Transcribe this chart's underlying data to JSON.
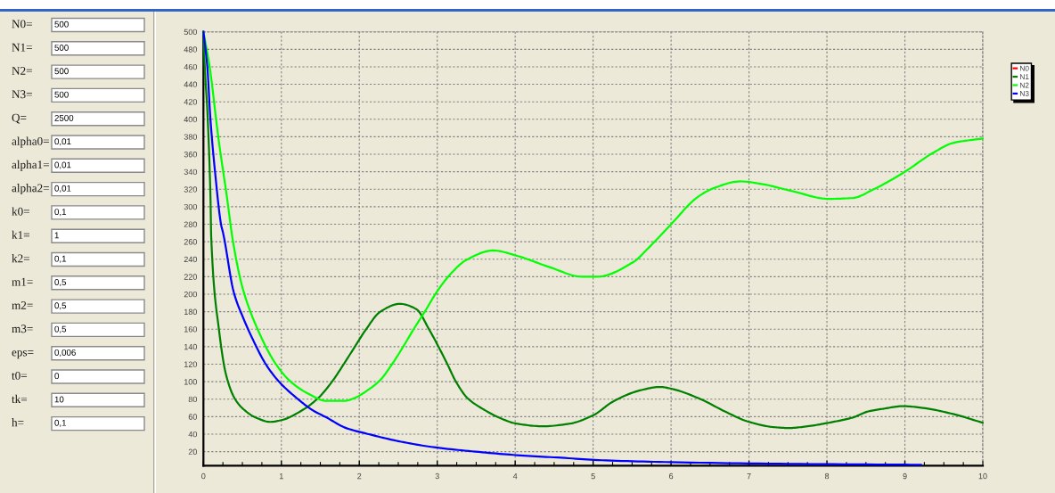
{
  "chart_data": [
    {
      "type": "other",
      "categories": [
        "N0=",
        "N1=",
        "N2=",
        "N3=",
        "Q=",
        "alpha0=",
        "alpha1=",
        "alpha2=",
        "k0=",
        "k1=",
        "k2=",
        "m1=",
        "m2=",
        "m3=",
        "eps=",
        "t0=",
        "tk=",
        "h="
      ],
      "value_labels": [
        "500",
        "500",
        "500",
        "500",
        "2500",
        "0,01",
        "0,01",
        "0,01",
        "0,1",
        "1",
        "0,1",
        "0,5",
        "0,5",
        "0,5",
        "0,006",
        "0",
        "10",
        "0,1"
      ]
    },
    {
      "type": "line",
      "xlim": [
        0,
        10
      ],
      "ylim": [
        4,
        500
      ],
      "xticks": [
        0,
        1,
        2,
        3,
        4,
        5,
        6,
        7,
        8,
        9,
        10
      ],
      "yticks": [
        20,
        40,
        60,
        80,
        100,
        120,
        140,
        160,
        180,
        200,
        220,
        240,
        260,
        280,
        300,
        320,
        340,
        360,
        380,
        400,
        420,
        440,
        460,
        480,
        500
      ],
      "grid": true,
      "legend": "top right",
      "series": [
        {
          "name": "N0",
          "color": "#ff0000",
          "values": [
            null
          ]
        },
        {
          "name": "N1",
          "color": "#008000",
          "x": [
            0,
            0.02,
            0.05,
            0.09,
            0.1,
            0.2,
            0.29,
            0.4,
            0.52,
            0.67,
            0.86,
            1.0,
            1.28,
            1.47,
            1.65,
            1.8,
            1.95,
            2.08,
            2.27,
            2.52,
            2.73,
            2.9,
            3.01,
            3.13,
            3.24,
            3.39,
            3.6,
            3.79,
            4.02,
            4.36,
            4.7,
            5.01,
            5.25,
            5.6,
            5.86,
            6.0,
            6.38,
            6.69,
            7.0,
            7.32,
            7.51,
            7.75,
            8.02,
            8.33,
            8.53,
            8.72,
            8.98,
            9.23,
            9.62,
            10
          ],
          "values": [
            500,
            455,
            410,
            312,
            265,
            159,
            108,
            81,
            68,
            59,
            54,
            56,
            68,
            81,
            100,
            120,
            141,
            159,
            180,
            189,
            183,
            159,
            141,
            120,
            100,
            81,
            68,
            59,
            52,
            49,
            52,
            62,
            77,
            90,
            94,
            92,
            80,
            66,
            54,
            48,
            47,
            49,
            53,
            59,
            66,
            69,
            72,
            70,
            63,
            53
          ]
        },
        {
          "name": "N2",
          "color": "#00ff00",
          "x": [
            0,
            0.08,
            0.19,
            0.3,
            0.38,
            0.5,
            0.7,
            0.93,
            1.12,
            1.35,
            1.58,
            1.81,
            1.93,
            2.12,
            2.27,
            2.42,
            2.57,
            2.69,
            2.84,
            2.99,
            3.16,
            3.37,
            3.72,
            4.02,
            4.44,
            4.86,
            5.05,
            5.52,
            5.7,
            5.99,
            6.34,
            6.54,
            6.89,
            7.16,
            7.55,
            8.02,
            8.33,
            8.6,
            9.0,
            9.35,
            9.62,
            10
          ],
          "values": [
            500,
            460,
            380,
            312,
            260,
            208,
            159,
            120,
            100,
            86,
            78,
            78,
            81,
            91,
            102,
            120,
            141,
            159,
            180,
            202,
            222,
            239,
            250,
            244,
            231,
            220,
            220,
            237,
            252,
            279,
            311,
            321,
            329,
            326,
            318,
            309,
            310,
            320,
            340,
            361,
            373,
            378
          ]
        },
        {
          "name": "N3",
          "color": "#0000ff",
          "x": [
            0,
            0.05,
            0.09,
            0.15,
            0.23,
            0.25,
            0.39,
            0.51,
            0.63,
            0.8,
            0.97,
            1.2,
            1.39,
            1.58,
            1.83,
            2.12,
            2.5,
            2.96,
            3.49,
            4.02,
            4.59,
            5.16,
            5.99,
            7.51,
            9.21
          ],
          "values": [
            500,
            460,
            400,
            339,
            278,
            271,
            202,
            173,
            149,
            120,
            100,
            81,
            68,
            59,
            47,
            40,
            32,
            25,
            20,
            16,
            13,
            10,
            8,
            6,
            5
          ]
        }
      ]
    }
  ]
}
